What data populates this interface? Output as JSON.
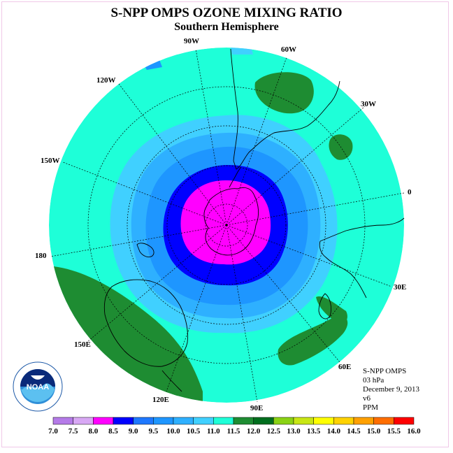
{
  "title": "S-NPP OMPS OZONE MIXING RATIO",
  "subtitle": "Southern Hemisphere",
  "longitude_labels": [
    "90W",
    "60W",
    "30W",
    "0",
    "30E",
    "60E",
    "90E",
    "120E",
    "150E",
    "180",
    "150W",
    "120W"
  ],
  "info": {
    "instrument": "S-NPP OMPS",
    "level": "03 hPa",
    "date": "December 9, 2013",
    "version": "v6",
    "units": "PPM"
  },
  "logo_text": "NOAA",
  "colorbar": {
    "ticks": [
      "7.0",
      "7.5",
      "8.0",
      "8.5",
      "9.0",
      "9.5",
      "10.0",
      "10.5",
      "11.0",
      "11.5",
      "12.0",
      "12.5",
      "13.0",
      "13.5",
      "14.0",
      "14.5",
      "15.0",
      "15.5",
      "16.0"
    ],
    "colors": [
      "#b57be8",
      "#d8a8f4",
      "#ff00ff",
      "#0000ff",
      "#1e78ff",
      "#1e96ff",
      "#2eb0ff",
      "#40d0ff",
      "#1effd8",
      "#1e8c32",
      "#006e1e",
      "#8ad214",
      "#c8e614",
      "#ffff00",
      "#ffd200",
      "#ffa000",
      "#ff6e00",
      "#ff0000",
      "#8c5a3c"
    ]
  },
  "colors": {
    "background": "#1effd8",
    "land_green": "#1e8c32",
    "dark_blue": "#0000ff",
    "magenta": "#ff00ff"
  }
}
